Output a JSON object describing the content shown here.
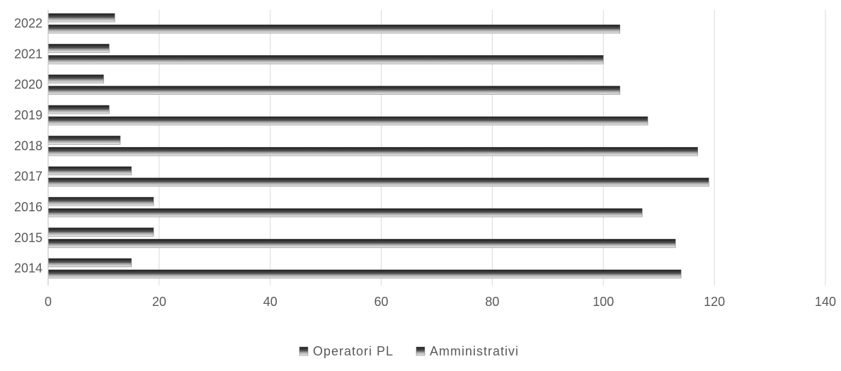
{
  "chart_data": {
    "type": "bar",
    "orientation": "horizontal",
    "categories": [
      "2014",
      "2015",
      "2016",
      "2017",
      "2018",
      "2019",
      "2020",
      "2021",
      "2022"
    ],
    "series": [
      {
        "name": "Operatori PL",
        "values": [
          114,
          113,
          107,
          119,
          117,
          108,
          103,
          100,
          103
        ]
      },
      {
        "name": "Amministrativi",
        "values": [
          15,
          19,
          19,
          15,
          13,
          11,
          10,
          11,
          12
        ]
      }
    ],
    "xlim": [
      0,
      140
    ],
    "x_ticks": [
      "0",
      "20",
      "40",
      "60",
      "80",
      "100",
      "120",
      "140"
    ],
    "grid": true,
    "legend_position": "bottom",
    "colors": {
      "bar_dark": "#2b2b2b",
      "bar_light": "#f0f0f0",
      "grid": "#d9d9d9",
      "axis": "#bfbfbf",
      "text": "#595959"
    }
  }
}
